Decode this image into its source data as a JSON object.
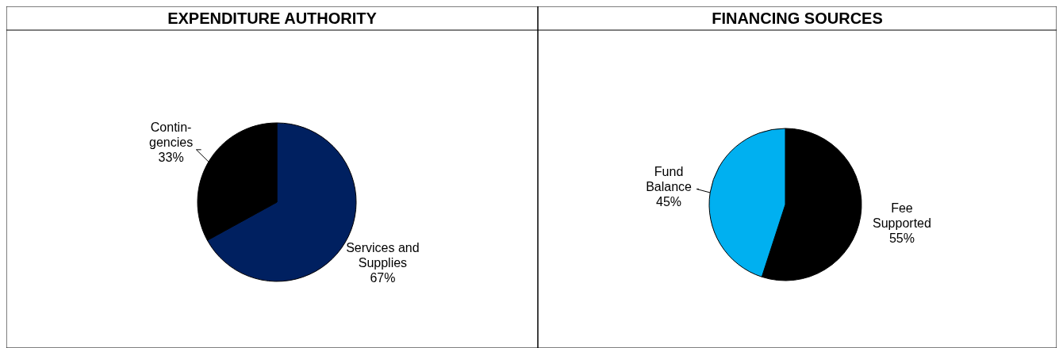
{
  "chart_data": [
    {
      "type": "pie",
      "title": "EXPENDITURE AUTHORITY",
      "categories": [
        "Services and\nSupplies",
        "Contin-\ngencies"
      ],
      "values": [
        67,
        33
      ],
      "colors": [
        "#002060",
        "#000000"
      ],
      "value_labels": [
        "67%",
        "33%"
      ]
    },
    {
      "type": "pie",
      "title": "FINANCING SOURCES",
      "categories": [
        "Fee\nSupported",
        "Fund\nBalance"
      ],
      "values": [
        55,
        45
      ],
      "colors": [
        "#000000",
        "#00b0f0"
      ],
      "value_labels": [
        "55%",
        "45%"
      ]
    }
  ]
}
